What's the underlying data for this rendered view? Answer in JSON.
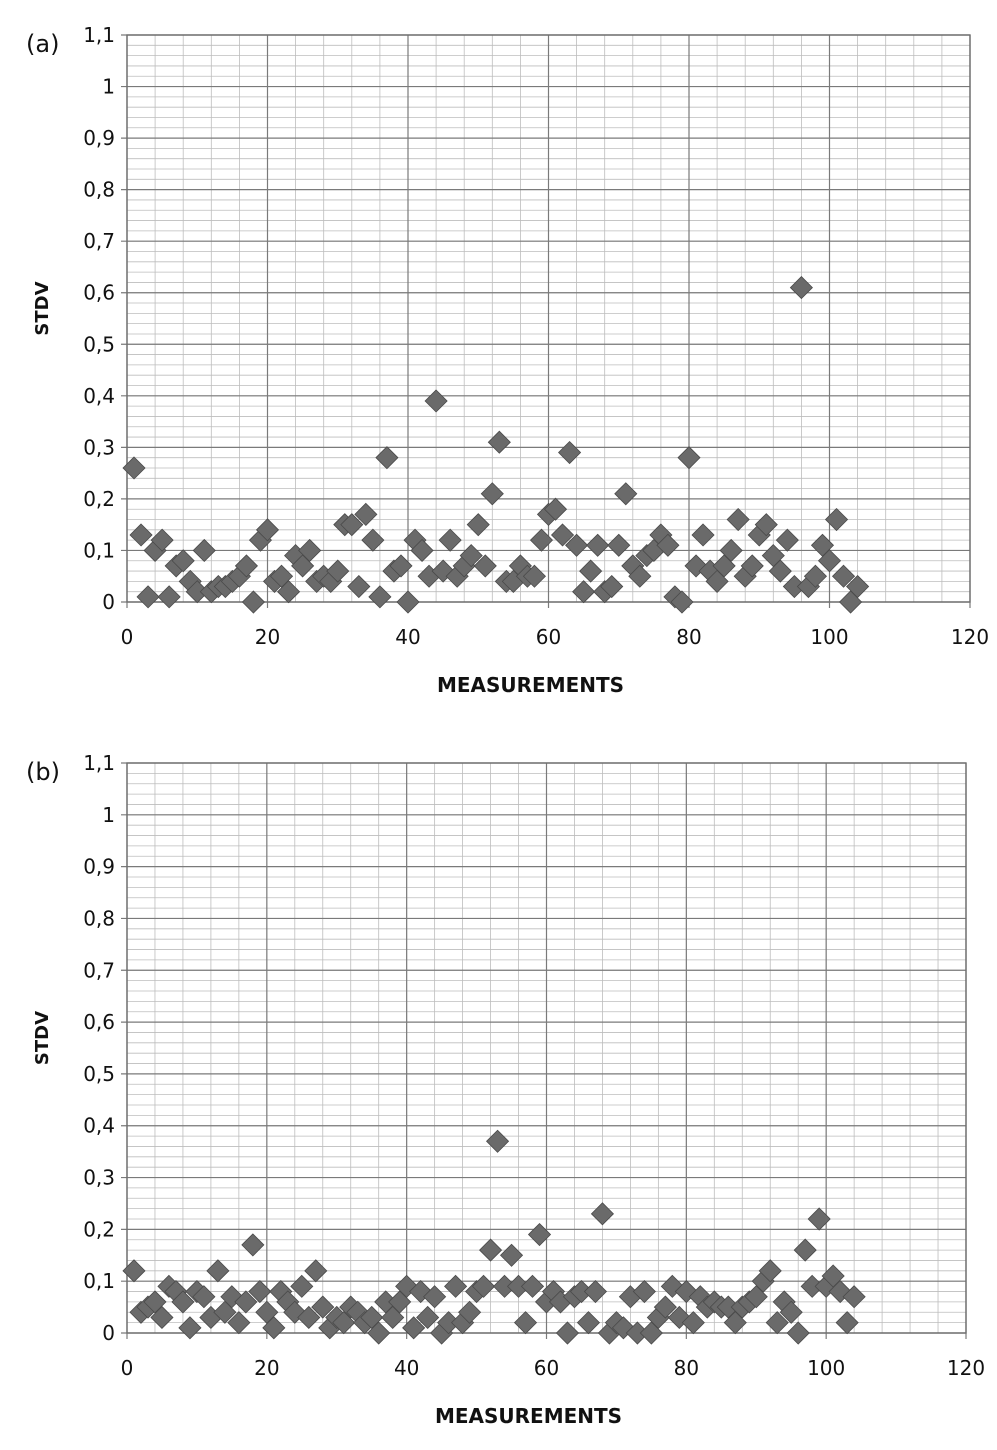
{
  "chart_data": [
    {
      "type": "scatter",
      "panel_label": "(a)",
      "xlabel": "MEASUREMENTS",
      "ylabel": "STDV",
      "xlim": [
        0,
        120
      ],
      "ylim": [
        0,
        1.1
      ],
      "x_ticks": [
        "0",
        "20",
        "40",
        "60",
        "80",
        "100",
        "120"
      ],
      "y_ticks": [
        "0",
        "0,1",
        "0,2",
        "0,3",
        "0,4",
        "0,5",
        "0,6",
        "0,7",
        "0,8",
        "0,9",
        "1",
        "1,1"
      ],
      "grid": true,
      "marker": "diamond",
      "marker_color": "#6a6a6a",
      "points": [
        [
          1,
          0.26
        ],
        [
          2,
          0.13
        ],
        [
          3,
          0.01
        ],
        [
          4,
          0.1
        ],
        [
          5,
          0.12
        ],
        [
          6,
          0.01
        ],
        [
          7,
          0.07
        ],
        [
          8,
          0.08
        ],
        [
          9,
          0.04
        ],
        [
          10,
          0.02
        ],
        [
          11,
          0.1
        ],
        [
          12,
          0.02
        ],
        [
          13,
          0.03
        ],
        [
          14,
          0.03
        ],
        [
          15,
          0.04
        ],
        [
          16,
          0.05
        ],
        [
          17,
          0.07
        ],
        [
          18,
          0.0
        ],
        [
          19,
          0.12
        ],
        [
          20,
          0.14
        ],
        [
          21,
          0.04
        ],
        [
          22,
          0.05
        ],
        [
          23,
          0.02
        ],
        [
          24,
          0.09
        ],
        [
          25,
          0.07
        ],
        [
          26,
          0.1
        ],
        [
          27,
          0.04
        ],
        [
          28,
          0.05
        ],
        [
          29,
          0.04
        ],
        [
          30,
          0.06
        ],
        [
          31,
          0.15
        ],
        [
          32,
          0.15
        ],
        [
          33,
          0.03
        ],
        [
          34,
          0.17
        ],
        [
          35,
          0.12
        ],
        [
          36,
          0.01
        ],
        [
          37,
          0.28
        ],
        [
          38,
          0.06
        ],
        [
          39,
          0.07
        ],
        [
          40,
          0.0
        ],
        [
          41,
          0.12
        ],
        [
          42,
          0.1
        ],
        [
          43,
          0.05
        ],
        [
          44,
          0.39
        ],
        [
          45,
          0.06
        ],
        [
          46,
          0.12
        ],
        [
          47,
          0.05
        ],
        [
          48,
          0.07
        ],
        [
          49,
          0.09
        ],
        [
          50,
          0.15
        ],
        [
          51,
          0.07
        ],
        [
          52,
          0.21
        ],
        [
          53,
          0.31
        ],
        [
          54,
          0.04
        ],
        [
          55,
          0.04
        ],
        [
          56,
          0.07
        ],
        [
          57,
          0.05
        ],
        [
          58,
          0.05
        ],
        [
          59,
          0.12
        ],
        [
          60,
          0.17
        ],
        [
          61,
          0.18
        ],
        [
          62,
          0.13
        ],
        [
          63,
          0.29
        ],
        [
          64,
          0.11
        ],
        [
          65,
          0.02
        ],
        [
          66,
          0.06
        ],
        [
          67,
          0.11
        ],
        [
          68,
          0.02
        ],
        [
          69,
          0.03
        ],
        [
          70,
          0.11
        ],
        [
          71,
          0.21
        ],
        [
          72,
          0.07
        ],
        [
          73,
          0.05
        ],
        [
          74,
          0.09
        ],
        [
          75,
          0.1
        ],
        [
          76,
          0.13
        ],
        [
          77,
          0.11
        ],
        [
          78,
          0.01
        ],
        [
          79,
          0.0
        ],
        [
          80,
          0.28
        ],
        [
          81,
          0.07
        ],
        [
          82,
          0.13
        ],
        [
          83,
          0.06
        ],
        [
          84,
          0.04
        ],
        [
          85,
          0.07
        ],
        [
          86,
          0.1
        ],
        [
          87,
          0.16
        ],
        [
          88,
          0.05
        ],
        [
          89,
          0.07
        ],
        [
          90,
          0.13
        ],
        [
          91,
          0.15
        ],
        [
          92,
          0.09
        ],
        [
          93,
          0.06
        ],
        [
          94,
          0.12
        ],
        [
          95,
          0.03
        ],
        [
          96,
          0.61
        ],
        [
          97,
          0.03
        ],
        [
          98,
          0.05
        ],
        [
          99,
          0.11
        ],
        [
          100,
          0.08
        ],
        [
          101,
          0.16
        ],
        [
          102,
          0.05
        ],
        [
          103,
          0.0
        ],
        [
          104,
          0.03
        ]
      ]
    },
    {
      "type": "scatter",
      "panel_label": "(b)",
      "xlabel": "MEASUREMENTS",
      "ylabel": "STDV",
      "xlim": [
        0,
        120
      ],
      "ylim": [
        0,
        1.1
      ],
      "x_ticks": [
        "0",
        "20",
        "40",
        "60",
        "80",
        "100",
        "120"
      ],
      "y_ticks": [
        "0",
        "0,1",
        "0,2",
        "0,3",
        "0,4",
        "0,5",
        "0,6",
        "0,7",
        "0,8",
        "0,9",
        "1",
        "1,1"
      ],
      "grid": true,
      "marker": "diamond",
      "marker_color": "#6a6a6a",
      "points": [
        [
          1,
          0.12
        ],
        [
          2,
          0.04
        ],
        [
          3,
          0.05
        ],
        [
          4,
          0.06
        ],
        [
          5,
          0.03
        ],
        [
          6,
          0.09
        ],
        [
          7,
          0.08
        ],
        [
          8,
          0.06
        ],
        [
          9,
          0.01
        ],
        [
          10,
          0.08
        ],
        [
          11,
          0.07
        ],
        [
          12,
          0.03
        ],
        [
          13,
          0.12
        ],
        [
          14,
          0.04
        ],
        [
          15,
          0.07
        ],
        [
          16,
          0.02
        ],
        [
          17,
          0.06
        ],
        [
          18,
          0.17
        ],
        [
          19,
          0.08
        ],
        [
          20,
          0.04
        ],
        [
          21,
          0.01
        ],
        [
          22,
          0.08
        ],
        [
          23,
          0.06
        ],
        [
          24,
          0.04
        ],
        [
          25,
          0.09
        ],
        [
          26,
          0.03
        ],
        [
          27,
          0.12
        ],
        [
          28,
          0.05
        ],
        [
          29,
          0.01
        ],
        [
          30,
          0.03
        ],
        [
          31,
          0.02
        ],
        [
          32,
          0.05
        ],
        [
          33,
          0.04
        ],
        [
          34,
          0.02
        ],
        [
          35,
          0.03
        ],
        [
          36,
          0.0
        ],
        [
          37,
          0.06
        ],
        [
          38,
          0.03
        ],
        [
          39,
          0.06
        ],
        [
          40,
          0.09
        ],
        [
          41,
          0.01
        ],
        [
          42,
          0.08
        ],
        [
          43,
          0.03
        ],
        [
          44,
          0.07
        ],
        [
          45,
          0.0
        ],
        [
          46,
          0.02
        ],
        [
          47,
          0.09
        ],
        [
          48,
          0.02
        ],
        [
          49,
          0.04
        ],
        [
          50,
          0.08
        ],
        [
          51,
          0.09
        ],
        [
          52,
          0.16
        ],
        [
          53,
          0.37
        ],
        [
          54,
          0.09
        ],
        [
          55,
          0.15
        ],
        [
          56,
          0.09
        ],
        [
          57,
          0.02
        ],
        [
          58,
          0.09
        ],
        [
          59,
          0.19
        ],
        [
          60,
          0.06
        ],
        [
          61,
          0.08
        ],
        [
          62,
          0.06
        ],
        [
          63,
          0.0
        ],
        [
          64,
          0.07
        ],
        [
          65,
          0.08
        ],
        [
          66,
          0.02
        ],
        [
          67,
          0.08
        ],
        [
          68,
          0.23
        ],
        [
          69,
          0.0
        ],
        [
          70,
          0.02
        ],
        [
          71,
          0.01
        ],
        [
          72,
          0.07
        ],
        [
          73,
          0.0
        ],
        [
          74,
          0.08
        ],
        [
          75,
          0.0
        ],
        [
          76,
          0.03
        ],
        [
          77,
          0.05
        ],
        [
          78,
          0.09
        ],
        [
          79,
          0.03
        ],
        [
          80,
          0.08
        ],
        [
          81,
          0.02
        ],
        [
          82,
          0.07
        ],
        [
          83,
          0.05
        ],
        [
          84,
          0.06
        ],
        [
          85,
          0.05
        ],
        [
          86,
          0.05
        ],
        [
          87,
          0.02
        ],
        [
          88,
          0.05
        ],
        [
          89,
          0.06
        ],
        [
          90,
          0.07
        ],
        [
          91,
          0.1
        ],
        [
          92,
          0.12
        ],
        [
          93,
          0.02
        ],
        [
          94,
          0.06
        ],
        [
          95,
          0.04
        ],
        [
          96,
          0.0
        ],
        [
          97,
          0.16
        ],
        [
          98,
          0.09
        ],
        [
          99,
          0.22
        ],
        [
          100,
          0.09
        ],
        [
          101,
          0.11
        ],
        [
          102,
          0.08
        ],
        [
          103,
          0.02
        ],
        [
          104,
          0.07
        ]
      ]
    }
  ]
}
